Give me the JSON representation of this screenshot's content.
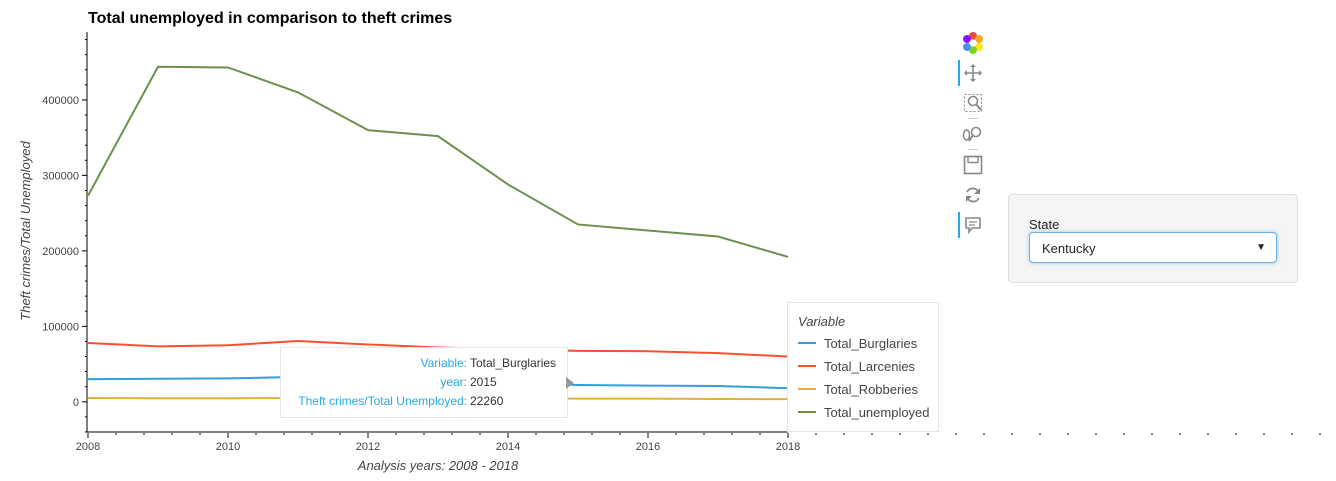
{
  "chart_data": {
    "type": "line",
    "title": "Total unemployed in comparison to theft crimes",
    "xlabel": "Analysis years: 2008 - 2018",
    "ylabel": "Theft crimes/Total Unemployed",
    "x": [
      2008,
      2009,
      2010,
      2011,
      2012,
      2013,
      2014,
      2015,
      2016,
      2017,
      2018
    ],
    "xlim": [
      2008,
      2018
    ],
    "ylim": [
      -40000,
      490000
    ],
    "xticks": [
      2008,
      2010,
      2012,
      2014,
      2016,
      2018
    ],
    "yticks": [
      0,
      100000,
      200000,
      300000,
      400000
    ],
    "series": [
      {
        "name": "Total_Burglaries",
        "color": "#30a2da",
        "values": [
          30000,
          30500,
          31000,
          33000,
          29000,
          26000,
          25000,
          22260,
          21500,
          21000,
          18000
        ]
      },
      {
        "name": "Total_Larcenies",
        "color": "#fc4f30",
        "values": [
          78000,
          73500,
          75000,
          80500,
          76000,
          72000,
          70000,
          67500,
          67000,
          64500,
          60000
        ]
      },
      {
        "name": "Total_Robberies",
        "color": "#e5ae38",
        "values": [
          5000,
          4700,
          4800,
          5000,
          4700,
          4600,
          4400,
          4300,
          4200,
          3800,
          3500
        ]
      },
      {
        "name": "Total_unemployed",
        "color": "#6d904f",
        "values": [
          273000,
          444000,
          443000,
          410000,
          360000,
          352000,
          288000,
          235000,
          227000,
          219000,
          192000
        ]
      }
    ],
    "legend": {
      "title": "Variable",
      "placement": "right"
    },
    "grid": false
  },
  "tooltip": {
    "rows": [
      {
        "label": "Variable:",
        "value": "Total_Burglaries"
      },
      {
        "label": "year:",
        "value": "2015"
      },
      {
        "label": "Theft crimes/Total Unemployed:",
        "value": "22260"
      }
    ]
  },
  "toolbar": {
    "tools": [
      "bokeh-logo-icon",
      "pan-icon",
      "box-zoom-icon",
      "wheel-zoom-icon",
      "save-icon",
      "reset-icon",
      "hover-icon"
    ]
  },
  "widget": {
    "label": "State",
    "selected": "Kentucky"
  }
}
